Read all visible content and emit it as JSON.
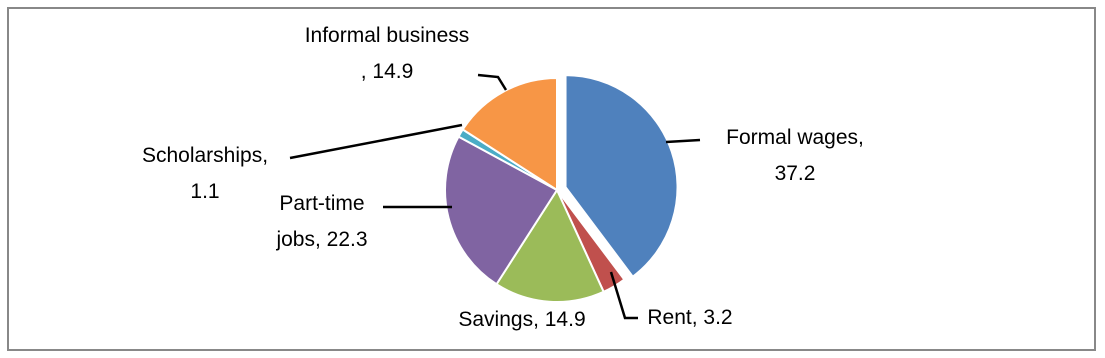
{
  "chart_data": {
    "type": "pie",
    "categories": [
      "Formal wages,",
      "Rent,",
      "Savings,",
      "Part-time jobs,",
      "Scholarships,",
      "Informal business ,"
    ],
    "values": [
      37.2,
      3.2,
      14.9,
      22.3,
      1.1,
      14.9
    ],
    "colors": [
      "#4f81bd",
      "#c0504d",
      "#9bbb59",
      "#8064a2",
      "#4bacc6",
      "#f79646"
    ]
  }
}
